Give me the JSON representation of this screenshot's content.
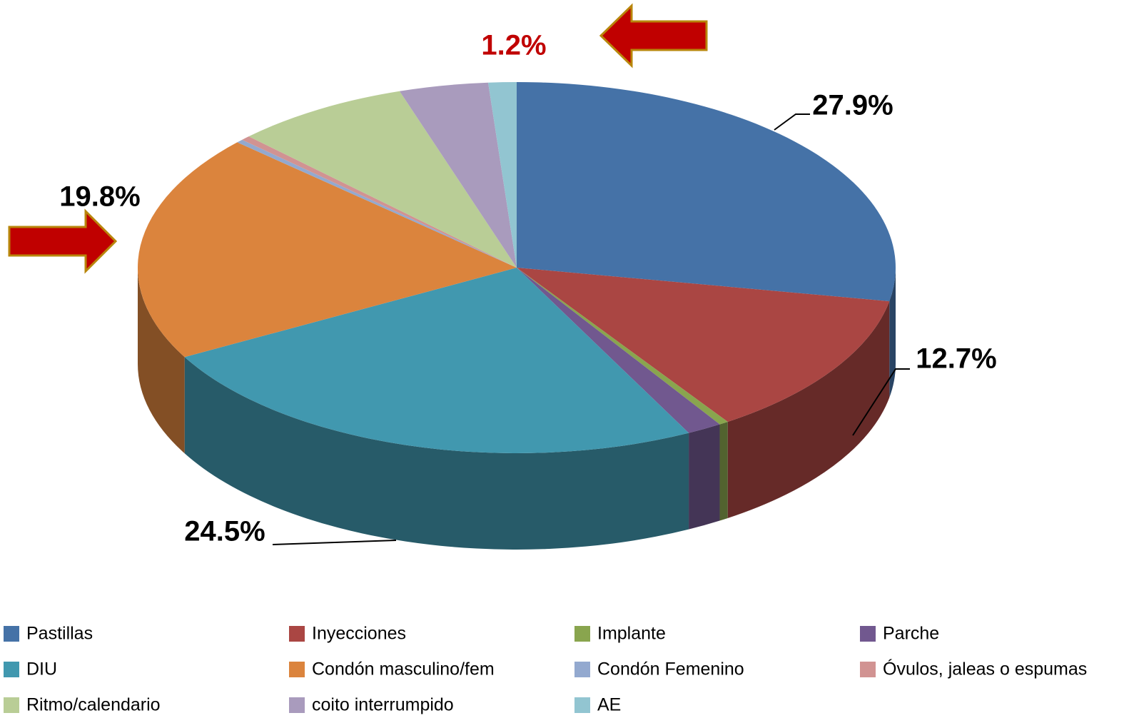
{
  "chart_data": {
    "type": "pie",
    "categories": [
      "Pastillas",
      "Inyecciones",
      "Implante",
      "Parche",
      " DIU",
      "Condón masculino/fem",
      "Condón Femenino",
      "Óvulos, jaleas o espumas",
      "Ritmo/calendario",
      "coito interrumpido",
      "AE"
    ],
    "values": [
      27.9,
      12.7,
      0.4,
      1.5,
      24.5,
      19.8,
      0.3,
      0.4,
      7.5,
      3.8,
      1.2
    ],
    "value_labels": [
      "27.9%",
      "12.7%",
      null,
      null,
      "24.5%",
      "19.8%",
      null,
      null,
      null,
      null,
      "1.2%"
    ],
    "value_label_colors": [
      "#000000",
      "#000000",
      null,
      null,
      "#000000",
      "#000000",
      null,
      null,
      null,
      null,
      "#c00000"
    ],
    "colors": [
      "#4572a7",
      "#aa4643",
      "#89a54e",
      "#71588f",
      "#4198af",
      "#db843d",
      "#93a9cf",
      "#d19392",
      "#b9cd96",
      "#a99bbd",
      "#92c5d1"
    ],
    "legend": "bottom"
  }
}
